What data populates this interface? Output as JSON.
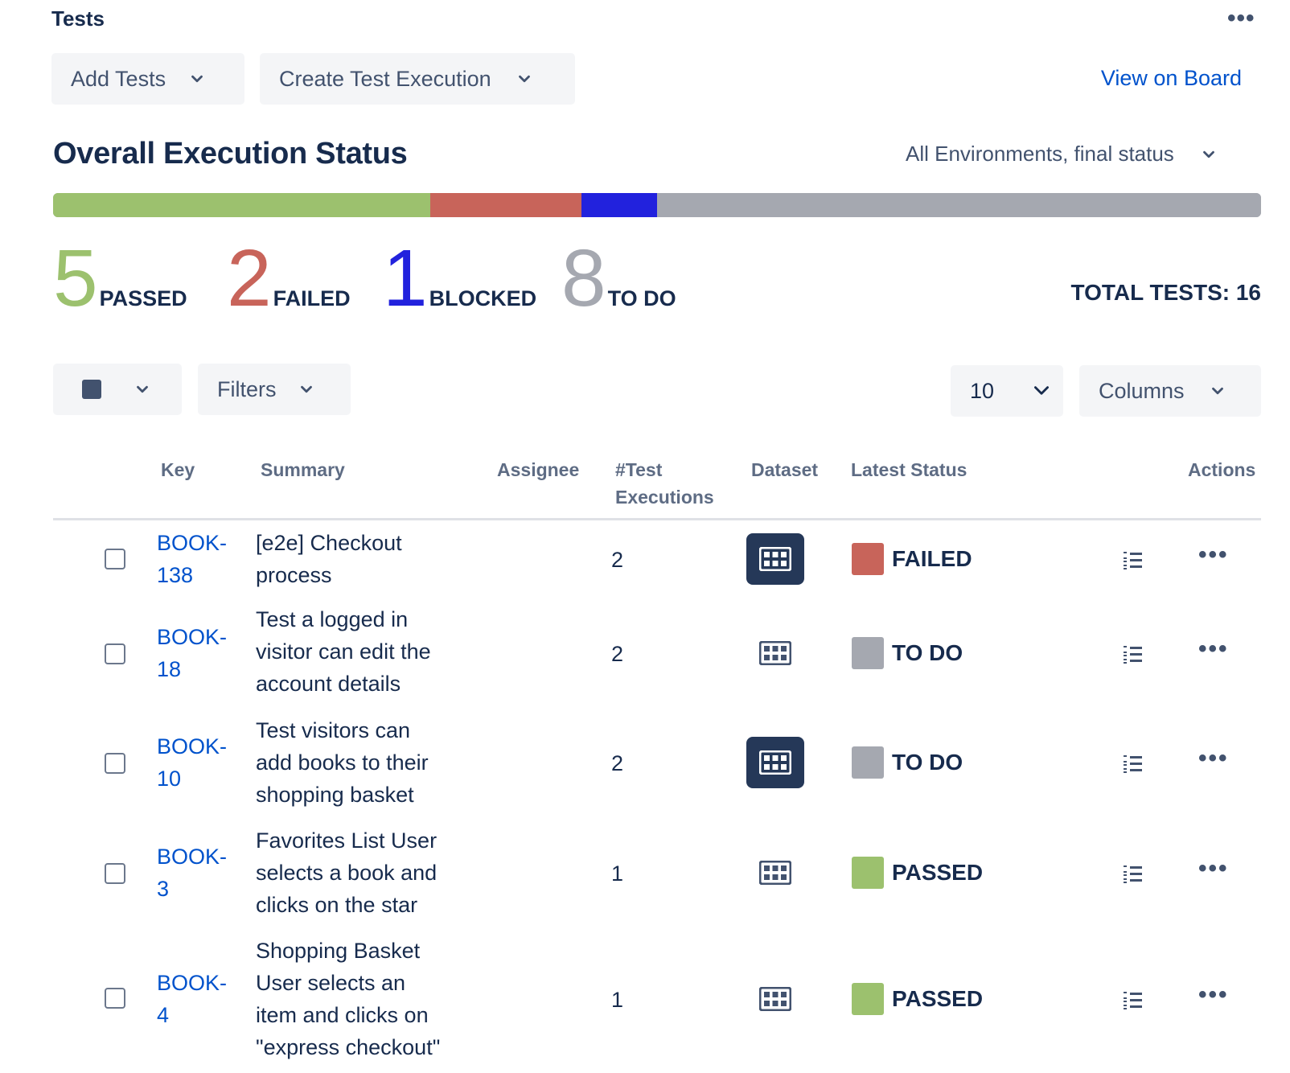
{
  "header": {
    "title": "Tests",
    "more_label": "•••"
  },
  "toolbar": {
    "add_tests_label": "Add Tests",
    "create_execution_label": "Create Test Execution",
    "view_board_label": "View on Board"
  },
  "overall": {
    "title": "Overall Execution Status",
    "environment": "All Environments, final status",
    "total_label": "TOTAL TESTS: 16",
    "stats": [
      {
        "count": "5",
        "label": "PASSED",
        "color": "#9cc16e",
        "value": 5
      },
      {
        "count": "2",
        "label": "FAILED",
        "color": "#c8645a",
        "value": 2
      },
      {
        "count": "1",
        "label": "BLOCKED",
        "color": "#2222dd",
        "value": 1
      },
      {
        "count": "8",
        "label": "TO DO",
        "color": "#a5a8b0",
        "value": 8
      }
    ]
  },
  "table_controls": {
    "filters_label": "Filters",
    "page_size": "10",
    "columns_label": "Columns"
  },
  "table": {
    "headers": {
      "key": "Key",
      "summary": "Summary",
      "assignee": "Assignee",
      "executions_line1": "#Test",
      "executions_line2": "Executions",
      "dataset": "Dataset",
      "latest_status": "Latest Status",
      "actions": "Actions"
    },
    "rows": [
      {
        "key_line1": "BOOK-",
        "key_line2": "138",
        "summary": [
          "[e2e] Checkout",
          "process"
        ],
        "assignee": "",
        "executions": "2",
        "dataset_filled": true,
        "status": "FAILED",
        "status_color": "#c8645a"
      },
      {
        "key_line1": "BOOK-",
        "key_line2": "18",
        "summary": [
          "Test a logged in",
          "visitor can edit the",
          "account details"
        ],
        "assignee": "",
        "executions": "2",
        "dataset_filled": false,
        "status": "TO DO",
        "status_color": "#a5a8b0"
      },
      {
        "key_line1": "BOOK-",
        "key_line2": "10",
        "summary": [
          "Test visitors can",
          "add books to their",
          "shopping basket"
        ],
        "assignee": "",
        "executions": "2",
        "dataset_filled": true,
        "status": "TO DO",
        "status_color": "#a5a8b0"
      },
      {
        "key_line1": "BOOK-",
        "key_line2": "3",
        "summary": [
          "Favorites List User",
          "selects a book and",
          "clicks on the star"
        ],
        "assignee": "",
        "executions": "1",
        "dataset_filled": false,
        "status": "PASSED",
        "status_color": "#9cc16e"
      },
      {
        "key_line1": "BOOK-",
        "key_line2": "4",
        "summary": [
          "Shopping Basket",
          "User selects an",
          "item and clicks on",
          "\"express checkout\""
        ],
        "assignee": "",
        "executions": "1",
        "dataset_filled": false,
        "status": "PASSED",
        "status_color": "#9cc16e"
      }
    ]
  },
  "icons": {
    "dropdown": "chevron-down-icon",
    "dataset": "grid-icon",
    "steps": "list-icon",
    "more": "more-icon",
    "select": "square-icon"
  },
  "colors": {
    "link": "#0052cc",
    "text": "#172b4d",
    "muted": "#5e6c84",
    "dataset_dark": "#253858"
  }
}
